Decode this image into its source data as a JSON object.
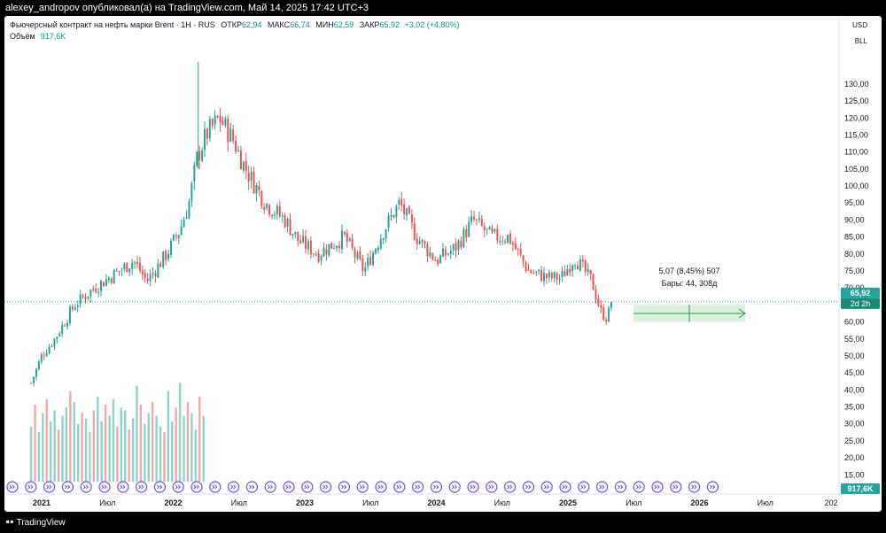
{
  "header": {
    "publisher_line": "alexey_andropov опубликовал(а) на TradingView.com, Май 14, 2025 17:42 UTC+3"
  },
  "footer": {
    "brand": "TradingView"
  },
  "legend": {
    "symbol": "Фьючерсный контракт на нефть марки Brent · 1Н · RUS",
    "open_label": "ОТКР",
    "open": "62,94",
    "high_label": "МАКС",
    "high": "66,74",
    "low_label": "МИН",
    "low": "62,59",
    "close_label": "ЗАКР",
    "close": "65,92",
    "change": "+3,02 (+4,80%)",
    "volume_label": "Объём",
    "volume": "917,6K"
  },
  "price_scale": {
    "currency": "USD",
    "unit": "BLL"
  },
  "badges": {
    "price": "65,92",
    "countdown": "2d 2h",
    "volume": "917,6K"
  },
  "measure": {
    "line1": "5,07 (8,45%) 507",
    "line2": "Бары: 44, 308д"
  },
  "colors": {
    "up": "#26a69a",
    "down": "#ef5350",
    "vol_up": "#8fd3cb",
    "vol_down": "#f4a8a7",
    "measure": "#2e9e3e",
    "events": "#6b4cff"
  },
  "chart_data": {
    "type": "candlestick",
    "title": "",
    "xlabel": "",
    "ylabel": "",
    "ylim": [
      13,
      137
    ],
    "y_ticks": [
      "130,00",
      "125,00",
      "120,00",
      "115,00",
      "110,00",
      "105,00",
      "100,00",
      "95,00",
      "90,00",
      "85,00",
      "80,00",
      "75,00",
      "70,00",
      "65,00",
      "60,00",
      "55,00",
      "50,00",
      "45,00",
      "40,00",
      "35,00",
      "30,00",
      "25,00",
      "20,00",
      "15,00"
    ],
    "x_ticks": [
      "2021",
      "Июл",
      "2022",
      "Июл",
      "2023",
      "Июл",
      "2024",
      "Июл",
      "2025",
      "Июл",
      "2026",
      "Июл",
      "202"
    ],
    "grid": false,
    "last_close": 65.92,
    "series": [
      {
        "type": "price_path",
        "x": [
          2020.92,
          2021.0,
          2021.1,
          2021.25,
          2021.4,
          2021.55,
          2021.7,
          2021.8,
          2021.95,
          2022.05,
          2022.12,
          2022.18,
          2022.25,
          2022.35,
          2022.45,
          2022.55,
          2022.7,
          2022.85,
          2022.95,
          2023.1,
          2023.3,
          2023.45,
          2023.6,
          2023.72,
          2023.85,
          2024.0,
          2024.15,
          2024.28,
          2024.42,
          2024.55,
          2024.7,
          2024.85,
          2024.95,
          2025.05,
          2025.18,
          2025.25,
          2025.3,
          2025.33
        ],
        "values": [
          42,
          50,
          55,
          65,
          70,
          74,
          78,
          72,
          80,
          87,
          95,
          108,
          115,
          120,
          114,
          105,
          95,
          90,
          84,
          80,
          85,
          75,
          87,
          95,
          85,
          78,
          82,
          90,
          85,
          85,
          75,
          73,
          73,
          79,
          72,
          63,
          61,
          65.92
        ]
      },
      {
        "type": "volume",
        "values": [
          20,
          28,
          18,
          25,
          30,
          22,
          26,
          19,
          24,
          27,
          33,
          29,
          21,
          25,
          23,
          18,
          26,
          31,
          22,
          28,
          24,
          30,
          20,
          27,
          26,
          19,
          23,
          35,
          28,
          21,
          25,
          29,
          24,
          20,
          18,
          33,
          22,
          27,
          36,
          24,
          29,
          25,
          19,
          31,
          24
        ]
      }
    ],
    "markers": {
      "event_count": 39
    },
    "measure": {
      "value_change": 5.07,
      "pct_change": 8.45,
      "ticks": 507,
      "bars": 44,
      "days": 308
    }
  }
}
